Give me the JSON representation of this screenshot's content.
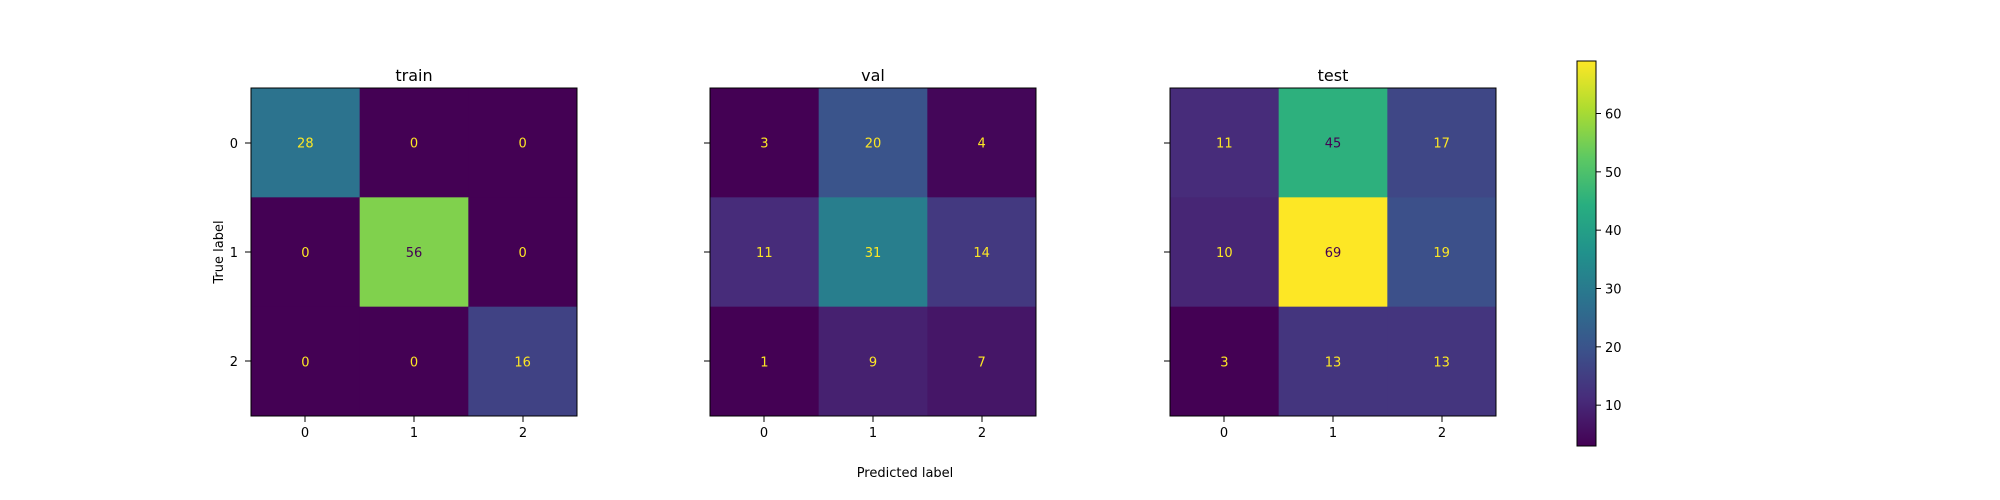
{
  "chart_data": {
    "type": "heatmap",
    "xlabel": "Predicted label",
    "ylabel": "True label",
    "x_ticks": [
      "0",
      "1",
      "2"
    ],
    "y_ticks": [
      "0",
      "1",
      "2"
    ],
    "panels": [
      {
        "title": "train",
        "matrix": [
          [
            28,
            0,
            0
          ],
          [
            0,
            56,
            0
          ],
          [
            0,
            0,
            16
          ]
        ]
      },
      {
        "title": "val",
        "matrix": [
          [
            3,
            20,
            4
          ],
          [
            11,
            31,
            14
          ],
          [
            1,
            9,
            7
          ]
        ]
      },
      {
        "title": "test",
        "matrix": [
          [
            11,
            45,
            17
          ],
          [
            10,
            69,
            19
          ],
          [
            3,
            13,
            13
          ]
        ]
      }
    ],
    "colormap": "viridis",
    "color_range": [
      3,
      69
    ],
    "colorbar_ticks": [
      10,
      20,
      30,
      40,
      50,
      60
    ]
  }
}
